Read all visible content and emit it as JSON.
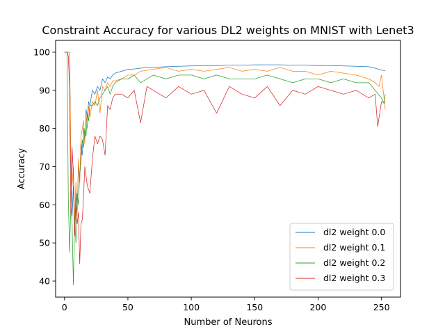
{
  "chart_data": {
    "type": "line",
    "title": "Constraint Accuracy for various DL2 weights on MNIST with Lenet3",
    "xlabel": "Number of Neurons",
    "ylabel": "Accuracy",
    "xlim": [
      -7,
      265
    ],
    "ylim": [
      35.8,
      103.1
    ],
    "xticks": [
      0,
      50,
      100,
      150,
      200,
      250
    ],
    "yticks": [
      40,
      50,
      60,
      70,
      80,
      90,
      100
    ],
    "legend_position": "lower-right",
    "grid": false,
    "series": [
      {
        "name": "dl2 weight 0.0",
        "color": "#1f77b4",
        "x": [
          0,
          2,
          4,
          5,
          6,
          7,
          8,
          9,
          10,
          11,
          12,
          13,
          14,
          15,
          16,
          17,
          18,
          19,
          20,
          22,
          24,
          26,
          28,
          30,
          32,
          34,
          36,
          38,
          40,
          45,
          50,
          55,
          60,
          65,
          70,
          80,
          90,
          100,
          110,
          120,
          130,
          140,
          150,
          160,
          170,
          180,
          190,
          200,
          210,
          220,
          230,
          240,
          245,
          250,
          253
        ],
        "y": [
          100,
          100,
          100,
          72,
          57,
          65,
          52,
          63,
          58,
          70,
          66,
          76,
          73,
          80,
          77,
          85,
          83,
          87,
          86,
          90,
          89,
          91,
          90,
          93,
          92,
          93.5,
          93,
          94,
          94.5,
          95,
          95.5,
          95.6,
          95.8,
          96,
          96,
          96.2,
          96.3,
          96.4,
          96.5,
          96.5,
          96.6,
          96.6,
          96.7,
          96.7,
          96.7,
          96.6,
          96.6,
          96.5,
          96.5,
          96.4,
          96.3,
          96.2,
          95.8,
          95.3,
          95.2
        ]
      },
      {
        "name": "dl2 weight 0.1",
        "color": "#ff7f0e",
        "x": [
          0,
          2,
          4,
          5,
          6,
          7,
          8,
          9,
          10,
          11,
          12,
          13,
          14,
          15,
          16,
          17,
          18,
          19,
          20,
          22,
          24,
          26,
          28,
          30,
          32,
          34,
          36,
          38,
          40,
          45,
          50,
          55,
          60,
          70,
          80,
          90,
          100,
          110,
          120,
          130,
          140,
          150,
          160,
          170,
          180,
          190,
          200,
          210,
          220,
          230,
          240,
          245,
          248,
          250,
          253
        ],
        "y": [
          100,
          100,
          100,
          73,
          65,
          70,
          55,
          66,
          57,
          72,
          66,
          78,
          80,
          82,
          76,
          84,
          80,
          86,
          83,
          87,
          86,
          90,
          84,
          91,
          90,
          92,
          91,
          92.5,
          92.5,
          93,
          94,
          94,
          95,
          95.5,
          96,
          95,
          95.5,
          95,
          95.5,
          96,
          95,
          95.5,
          95,
          96,
          95,
          95,
          94,
          95,
          94.5,
          94,
          93,
          92,
          91,
          94,
          85
        ]
      },
      {
        "name": "dl2 weight 0.2",
        "color": "#2ca02c",
        "x": [
          0,
          2,
          3,
          4,
          5,
          6,
          7,
          8,
          9,
          10,
          11,
          12,
          13,
          14,
          15,
          16,
          17,
          18,
          19,
          20,
          22,
          24,
          26,
          28,
          30,
          32,
          34,
          36,
          38,
          40,
          45,
          50,
          55,
          60,
          70,
          80,
          90,
          100,
          110,
          120,
          130,
          140,
          150,
          160,
          170,
          180,
          190,
          200,
          210,
          220,
          230,
          240,
          245,
          250,
          252,
          253
        ],
        "y": [
          100,
          100,
          62,
          47.5,
          60,
          55,
          39,
          57,
          50,
          63,
          60,
          68,
          71,
          77,
          75,
          80,
          78,
          84,
          82,
          86,
          86,
          87,
          86,
          88,
          89,
          90,
          91,
          89,
          91,
          92,
          93,
          93,
          94,
          92,
          94,
          93,
          94,
          94,
          93,
          94,
          93,
          93,
          93,
          94,
          93,
          92,
          93,
          93,
          92,
          93,
          92,
          92,
          90,
          88,
          86.5,
          89
        ]
      },
      {
        "name": "dl2 weight 0.3",
        "color": "#d62728",
        "x": [
          0,
          2,
          3,
          4,
          5,
          6,
          7,
          8,
          9,
          10,
          11,
          12,
          13,
          14,
          15,
          16,
          18,
          20,
          22,
          24,
          26,
          28,
          30,
          32,
          34,
          36,
          38,
          40,
          45,
          50,
          55,
          60,
          65,
          70,
          80,
          90,
          100,
          110,
          120,
          130,
          140,
          150,
          160,
          170,
          180,
          190,
          200,
          210,
          220,
          230,
          240,
          245,
          247,
          250,
          253
        ],
        "y": [
          100,
          100,
          99,
          91,
          58,
          75,
          68,
          52,
          60,
          55,
          58,
          44.5,
          55,
          56,
          62,
          70,
          65,
          63,
          72,
          78,
          76,
          78,
          77,
          73,
          86,
          85,
          88,
          89,
          89,
          88,
          90,
          81.5,
          91,
          90,
          88,
          91,
          89,
          90,
          84,
          91,
          89,
          88,
          91,
          86,
          90,
          89,
          91,
          90,
          89,
          90,
          88,
          89,
          80.5,
          87,
          87
        ]
      }
    ]
  }
}
